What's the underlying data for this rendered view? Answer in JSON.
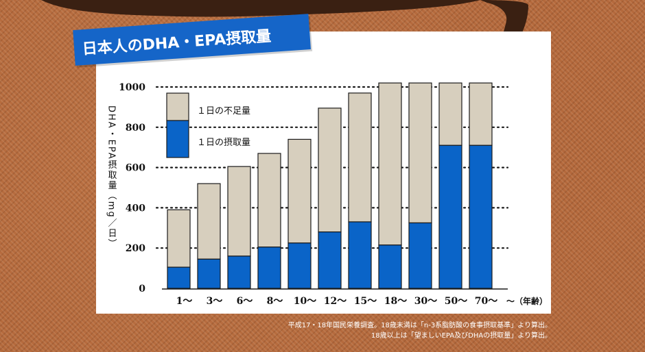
{
  "title": "日本人のDHA・EPA摂取量",
  "notes": [
    "平成17・18年国民栄養調査。18歳未満は「n-3系脂肪酸の食事摂取基準」より算出。",
    "18歳以上は「望ましいEPA及びDHAの摂取量」より算出。"
  ],
  "colors": {
    "intake": "#0a64c8",
    "shortfall": "#d7cfbe",
    "banner": "#1565c8",
    "background": "#b4693c",
    "drip": "#3a2012"
  },
  "chart_data": {
    "type": "bar",
    "stacked": true,
    "categories": [
      "1～",
      "3～",
      "6～",
      "8～",
      "10～",
      "12～",
      "15～",
      "18～",
      "30～",
      "50～",
      "70～"
    ],
    "x_end_label": "～（年齢）",
    "ylabel": "DHA・EPA摂取量（mg／日）",
    "ylim": [
      0,
      1000
    ],
    "yticks": [
      0,
      200,
      400,
      600,
      800,
      1000
    ],
    "grid": "dotted-horizontal",
    "legend_placement": "top-left",
    "series": [
      {
        "name": "１日の摂取量",
        "values": [
          105,
          145,
          160,
          205,
          225,
          280,
          330,
          215,
          325,
          710,
          710
        ]
      },
      {
        "name": "１日の不足量",
        "values": [
          285,
          375,
          445,
          465,
          515,
          615,
          640,
          805,
          695,
          310,
          310
        ]
      }
    ]
  }
}
